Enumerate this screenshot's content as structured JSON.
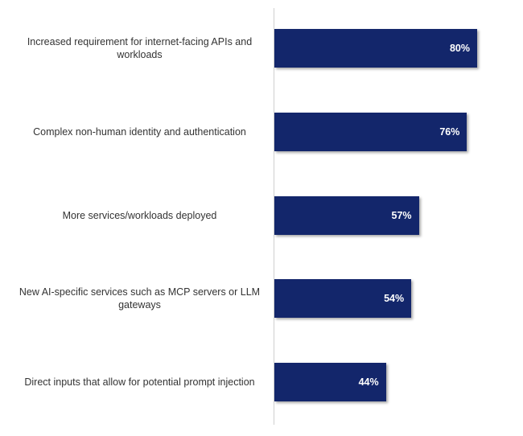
{
  "chart_data": {
    "type": "bar",
    "orientation": "horizontal",
    "categories": [
      "Increased requirement for internet-facing APIs and workloads",
      "Complex non-human identity and authentication",
      "More services/workloads deployed",
      "New AI-specific services such as MCP servers or LLM gateways",
      "Direct inputs that allow for potential prompt injection"
    ],
    "values": [
      80,
      76,
      57,
      54,
      44
    ],
    "value_labels": [
      "80%",
      "76%",
      "57%",
      "54%",
      "44%"
    ],
    "title": "",
    "xlabel": "",
    "ylabel": "",
    "xlim": [
      0,
      100
    ],
    "grid": false,
    "legend": "none",
    "bar_color": "#13266b",
    "label_color": "#333333",
    "value_label_color": "#ffffff",
    "axis_color": "#d0d0d0"
  }
}
